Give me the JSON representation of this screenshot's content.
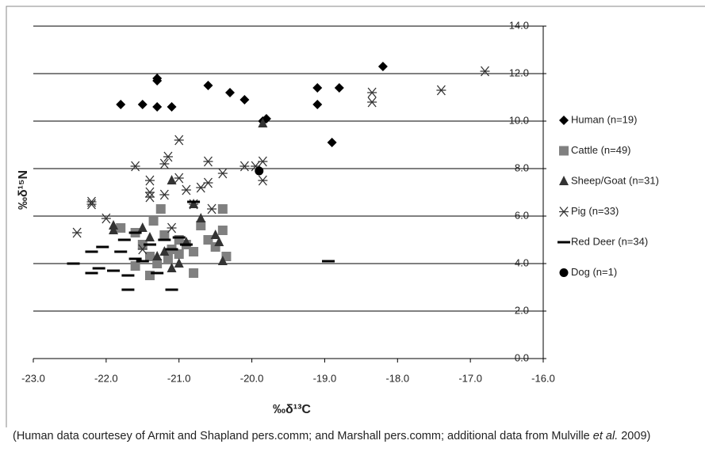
{
  "chart_data": {
    "type": "scatter",
    "x_label": "‰δ¹³C",
    "y_label": "‰δ¹⁵N",
    "xlim": [
      -23,
      -16
    ],
    "ylim": [
      0,
      14
    ],
    "xticks": [
      {
        "value": -23,
        "label": "-23.0"
      },
      {
        "value": -22,
        "label": "-22.0"
      },
      {
        "value": -21,
        "label": "-21.0"
      },
      {
        "value": -20,
        "label": "-20.0"
      },
      {
        "value": -19,
        "label": "-19.0"
      },
      {
        "value": -18,
        "label": "-18.0"
      },
      {
        "value": -17,
        "label": "-17.0"
      },
      {
        "value": -16,
        "label": "-16.0"
      }
    ],
    "yticks": [
      {
        "value": 0,
        "label": "0.0"
      },
      {
        "value": 2,
        "label": "2.0"
      },
      {
        "value": 4,
        "label": "4.0"
      },
      {
        "value": 6,
        "label": "6.0"
      },
      {
        "value": 8,
        "label": "8.0"
      },
      {
        "value": 10,
        "label": "10.0"
      },
      {
        "value": 12,
        "label": "12.0"
      },
      {
        "value": 14,
        "label": "14.0"
      }
    ],
    "grid": true,
    "series": [
      {
        "name": "Human (n=19)",
        "color": "#000000",
        "x": [
          -21.8,
          -21.5,
          -21.3,
          -21.1,
          -21.3,
          -21.3,
          -20.6,
          -20.3,
          -20.1,
          -19.8,
          -19.1,
          -19.1,
          -18.8,
          -18.9,
          -18.2,
          -19.85
        ],
        "values": [
          10.7,
          10.7,
          10.6,
          10.6,
          11.7,
          11.8,
          11.5,
          11.2,
          10.9,
          10.1,
          11.4,
          10.7,
          11.4,
          9.1,
          12.3,
          10.0
        ]
      },
      {
        "name": "Cattle (n=49)",
        "color": "#808080",
        "x": [
          -21.8,
          -21.6,
          -21.5,
          -21.4,
          -21.4,
          -21.35,
          -21.25,
          -21.2,
          -21.1,
          -21.0,
          -21.0,
          -20.9,
          -20.8,
          -20.7,
          -20.6,
          -20.5,
          -20.4,
          -20.4,
          -20.35,
          -21.6,
          -21.3,
          -20.8,
          -21.15
        ],
        "values": [
          5.5,
          5.3,
          4.8,
          4.3,
          3.5,
          5.8,
          6.3,
          5.2,
          4.6,
          4.4,
          5.0,
          4.8,
          3.6,
          5.6,
          5.0,
          4.7,
          6.3,
          5.4,
          4.3,
          3.9,
          4.0,
          4.5,
          4.2
        ]
      },
      {
        "name": "Sheep/Goat (n=31)",
        "color": "#333333",
        "x": [
          -21.9,
          -21.9,
          -21.5,
          -21.4,
          -21.1,
          -20.9,
          -20.8,
          -20.7,
          -20.5,
          -20.45,
          -20.4,
          -21.1,
          -21.2,
          -21.3,
          -19.85,
          -21.0
        ],
        "values": [
          5.6,
          5.4,
          5.5,
          5.1,
          7.5,
          4.9,
          6.5,
          5.9,
          5.2,
          4.9,
          4.1,
          3.8,
          4.5,
          4.3,
          9.9,
          4.0
        ]
      },
      {
        "name": "Pig (n=33)",
        "color": "#333333",
        "x": [
          -22.4,
          -22.2,
          -22.2,
          -22.0,
          -21.6,
          -21.4,
          -21.4,
          -21.4,
          -21.2,
          -21.15,
          -21.2,
          -21.0,
          -21.0,
          -20.9,
          -20.8,
          -20.7,
          -20.6,
          -20.6,
          -20.4,
          -20.1,
          -19.95,
          -19.85,
          -19.85,
          -20.55,
          -21.5,
          -21.1,
          -18.35,
          -18.35,
          -17.4,
          -16.8
        ],
        "values": [
          5.3,
          6.5,
          6.6,
          5.9,
          8.1,
          7.5,
          7.0,
          6.8,
          8.2,
          8.5,
          6.9,
          9.2,
          7.6,
          7.1,
          6.5,
          7.2,
          8.3,
          7.4,
          7.8,
          8.1,
          8.1,
          8.3,
          7.5,
          6.3,
          4.6,
          5.5,
          11.2,
          10.8,
          11.3,
          12.1
        ]
      },
      {
        "name": "Red Deer (n=34)",
        "color": "#000000",
        "x": [
          -22.45,
          -22.2,
          -22.1,
          -22.2,
          -22.05,
          -21.9,
          -21.8,
          -21.7,
          -21.7,
          -21.6,
          -21.5,
          -21.4,
          -21.3,
          -21.1,
          -21.1,
          -21.0,
          -20.9,
          -21.2,
          -20.8,
          -18.95,
          -21.75,
          -21.6
        ],
        "values": [
          4.0,
          4.5,
          3.8,
          3.6,
          4.7,
          3.7,
          4.5,
          3.5,
          2.9,
          4.2,
          4.1,
          4.8,
          3.6,
          2.9,
          4.6,
          5.1,
          4.8,
          5.0,
          6.6,
          4.1,
          5.0,
          5.3
        ]
      },
      {
        "name": "Dog (n=1)",
        "color": "#000000",
        "x": [
          -19.9
        ],
        "values": [
          7.9
        ]
      }
    ]
  },
  "note": [
    "(Human data courtesey of Armit and Shapland pers.comm; and Marshall pers.comm; additional data from Mulville ",
    "et al.",
    " 2009)"
  ]
}
